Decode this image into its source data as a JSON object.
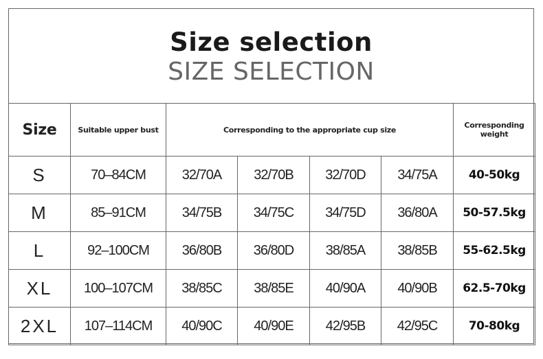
{
  "title": "Size selection",
  "subtitle": "SIZE SELECTION",
  "headers": {
    "size": "Size",
    "bust": "Suitable upper bust",
    "cup": "Corresponding to the appropriate cup size",
    "weight": "Corresponding weight"
  },
  "rows": [
    {
      "size": "S",
      "bust": "70–84CM",
      "cups": [
        "32/70A",
        "32/70B",
        "32/70D",
        "34/75A"
      ],
      "weight": "40-50kg"
    },
    {
      "size": "M",
      "bust": "85–91CM",
      "cups": [
        "34/75B",
        "34/75C",
        "34/75D",
        "36/80A"
      ],
      "weight": "50-57.5kg"
    },
    {
      "size": "L",
      "bust": "92–100CM",
      "cups": [
        "36/80B",
        "36/80D",
        "38/85A",
        "38/85B"
      ],
      "weight": "55-62.5kg"
    },
    {
      "size": "XL",
      "bust": "100–107CM",
      "cups": [
        "38/85C",
        "38/85E",
        "40/90A",
        "40/90B"
      ],
      "weight": "62.5-70kg"
    },
    {
      "size": "2XL",
      "bust": "107–114CM",
      "cups": [
        "40/90C",
        "40/90E",
        "42/95B",
        "42/95C"
      ],
      "weight": "70-80kg"
    }
  ]
}
